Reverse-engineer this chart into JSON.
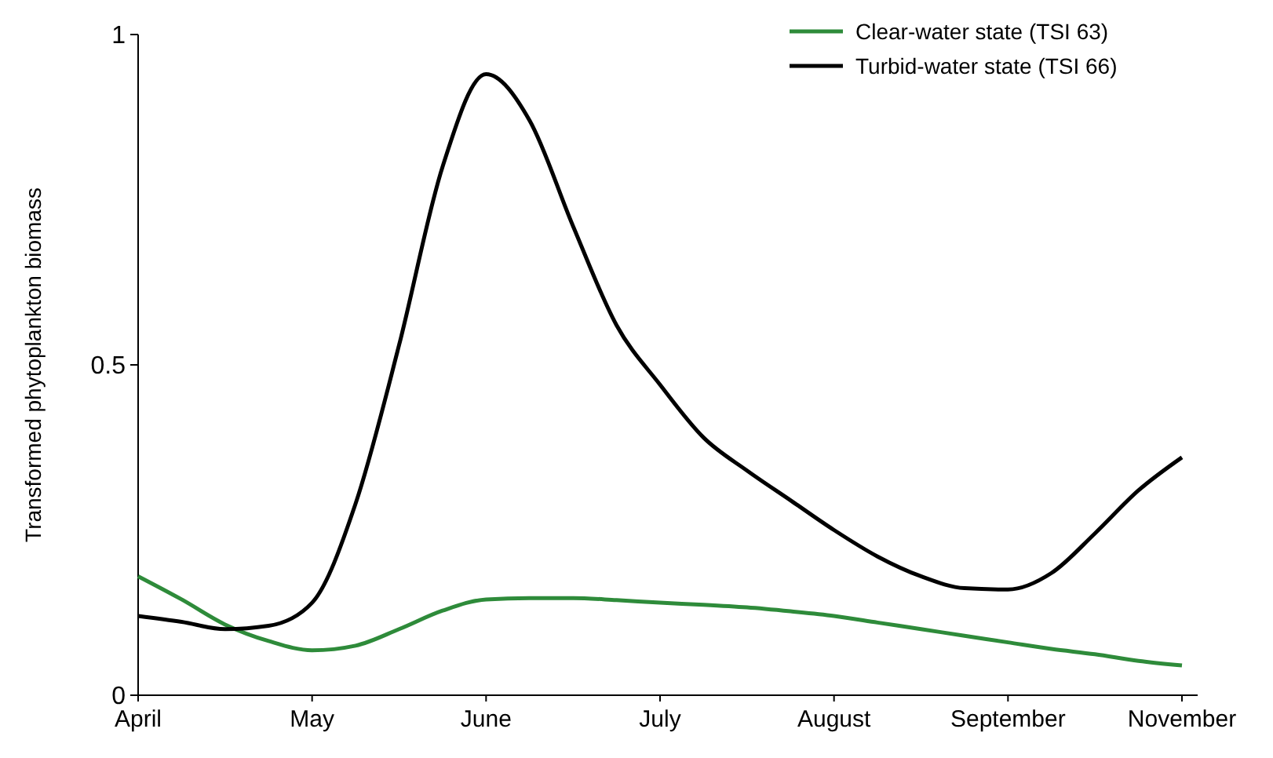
{
  "chart_data": {
    "type": "line",
    "ylabel": "Transformed phytoplankton biomass",
    "categories": [
      "April",
      null,
      null,
      null,
      "May",
      null,
      null,
      null,
      "June",
      null,
      null,
      null,
      "July",
      null,
      null,
      null,
      "August",
      null,
      null,
      null,
      "September",
      null,
      null,
      null,
      "November"
    ],
    "ylim": [
      0,
      1
    ],
    "yticks": [
      0,
      0.5,
      1
    ],
    "legend": "top right",
    "grid": false,
    "marker": "none",
    "line_style": "solid",
    "series": [
      {
        "name": "Clear-water state (TSI 63)",
        "color": "#2e8b3a",
        "values": [
          0.18,
          0.145,
          0.107,
          0.082,
          0.068,
          0.075,
          0.1,
          0.128,
          0.145,
          0.147,
          0.147,
          0.144,
          0.14,
          0.137,
          0.133,
          0.127,
          0.12,
          0.11,
          0.1,
          0.09,
          0.08,
          0.07,
          0.062,
          0.052,
          0.045
        ]
      },
      {
        "name": "Turbid-water state (TSI 66)",
        "color": "#000000",
        "values": [
          0.12,
          0.111,
          0.1,
          0.105,
          0.14,
          0.29,
          0.53,
          0.8,
          0.94,
          0.87,
          0.71,
          0.56,
          0.47,
          0.39,
          0.34,
          0.295,
          0.25,
          0.21,
          0.18,
          0.162,
          0.16,
          0.185,
          0.245,
          0.31,
          0.36
        ]
      }
    ]
  }
}
